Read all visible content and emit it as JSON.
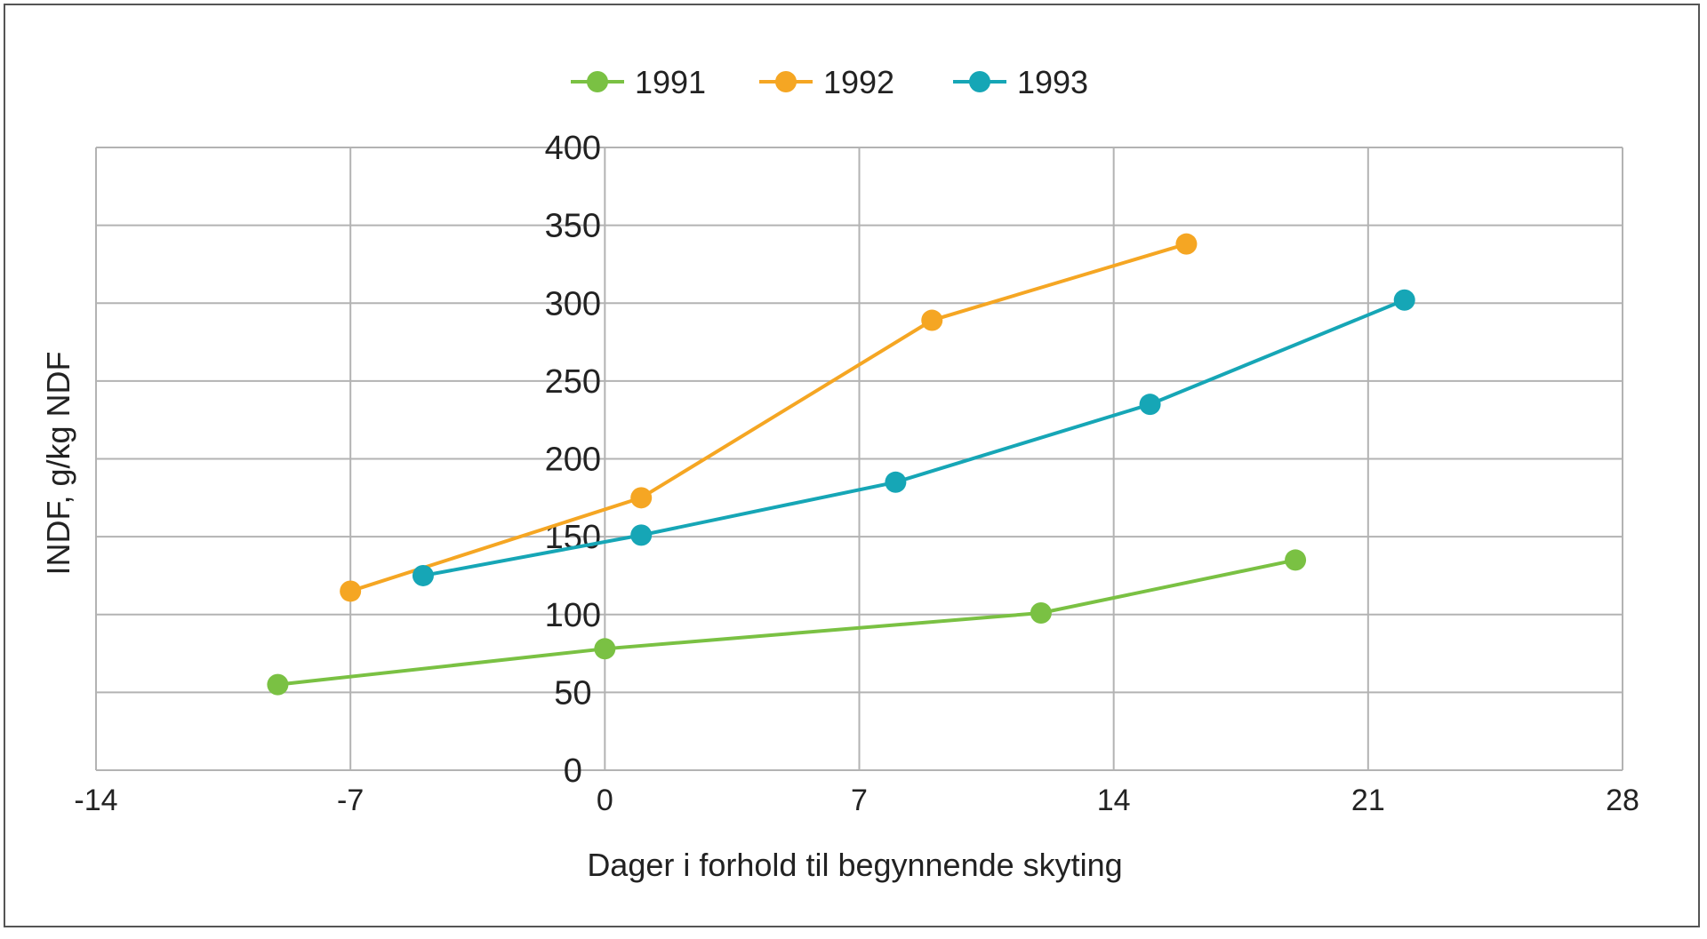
{
  "chart_data": {
    "type": "scatter",
    "title": "",
    "xlabel": "Dager i forhold til begynnende skyting",
    "ylabel": "INDF, g/kg NDF",
    "xlim": [
      -14,
      28
    ],
    "ylim": [
      0,
      400
    ],
    "xticks": [
      -14,
      -7,
      0,
      7,
      14,
      21,
      28
    ],
    "yticks": [
      0,
      50,
      100,
      150,
      200,
      250,
      300,
      350,
      400
    ],
    "xtick_labels": [
      "-14",
      "-7",
      "0",
      "7",
      "14",
      "21",
      "28"
    ],
    "ytick_labels": [
      "0",
      "50",
      "100",
      "150",
      "200",
      "250",
      "300",
      "350",
      "400"
    ],
    "grid": true,
    "legend_position": "top-center",
    "series": [
      {
        "name": "1991",
        "color": "#7ac143",
        "x": [
          -9,
          0,
          12,
          19
        ],
        "y": [
          55,
          78,
          101,
          135
        ]
      },
      {
        "name": "1992",
        "color": "#f5a623",
        "x": [
          -7,
          1,
          9,
          16
        ],
        "y": [
          115,
          175,
          289,
          338
        ]
      },
      {
        "name": "1993",
        "color": "#16a6b6",
        "x": [
          -5,
          1,
          8,
          15,
          22
        ],
        "y": [
          125,
          151,
          185,
          235,
          302
        ]
      }
    ]
  }
}
